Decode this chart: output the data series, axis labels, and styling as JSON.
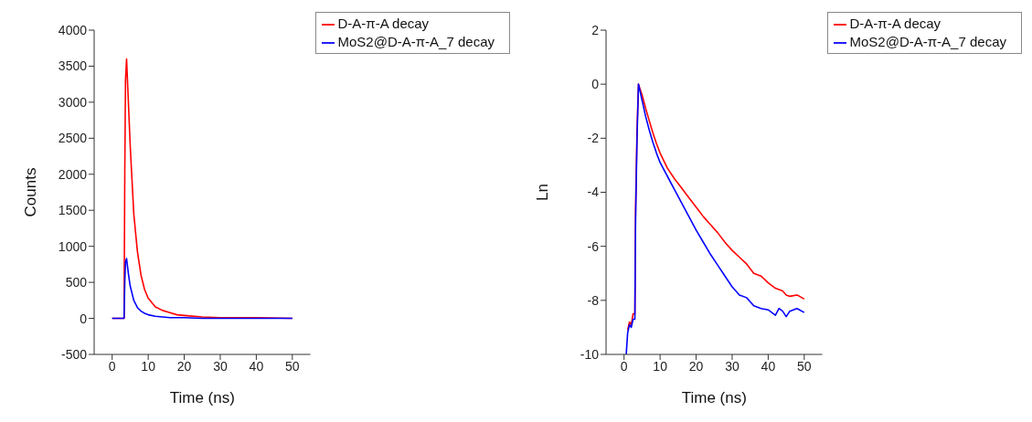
{
  "chart_data": [
    {
      "type": "line",
      "xlabel": "Time (ns)",
      "ylabel": "Counts",
      "xlim": [
        -5,
        55
      ],
      "xticks": [
        0,
        10,
        20,
        30,
        40,
        50
      ],
      "ylim": [
        -500,
        4000
      ],
      "yticks": [
        -500,
        0,
        500,
        1000,
        1500,
        2000,
        2500,
        3000,
        3500,
        4000
      ],
      "grid": false,
      "legend": "top right",
      "marker": "none",
      "line_style": "solid",
      "x": [
        0,
        3.3,
        3.5,
        3.7,
        4,
        4.5,
        5,
        6,
        7,
        8,
        9,
        10,
        12,
        14,
        16,
        18,
        20,
        25,
        30,
        40,
        50
      ],
      "series": [
        {
          "name": "D-A-π-A decay",
          "color": "#ff0000",
          "values": [
            0,
            0,
            2000,
            3300,
            3600,
            3000,
            2400,
            1450,
            930,
            600,
            400,
            280,
            160,
            110,
            80,
            50,
            40,
            20,
            10,
            10,
            0
          ]
        },
        {
          "name": "MoS2@D-A-π-A_7 decay",
          "color": "#0000ff",
          "values": [
            0,
            0,
            500,
            780,
            830,
            620,
            450,
            250,
            150,
            100,
            70,
            50,
            30,
            20,
            10,
            10,
            10,
            0,
            0,
            0,
            0
          ]
        }
      ]
    },
    {
      "type": "line",
      "xlabel": "Time (ns)",
      "ylabel": "Ln",
      "xlim": [
        -5,
        55
      ],
      "xticks": [
        0,
        10,
        20,
        30,
        40,
        50
      ],
      "ylim": [
        -10,
        2
      ],
      "yticks": [
        -10,
        -8,
        -6,
        -4,
        -2,
        0,
        2
      ],
      "grid": false,
      "legend": "top right",
      "marker": "none",
      "line_style": "solid",
      "x": [
        0.6,
        1,
        1.5,
        2,
        2.5,
        3,
        3.2,
        3.6,
        4,
        5,
        6,
        7,
        8,
        9,
        10,
        12,
        14,
        16,
        18,
        20,
        22,
        24,
        26,
        28,
        30,
        32,
        34,
        36,
        38,
        40,
        42,
        43,
        44,
        45,
        46,
        48,
        50
      ],
      "series": [
        {
          "name": "D-A-π-A decay",
          "color": "#ff0000",
          "values": [
            null,
            -9.1,
            -8.8,
            -8.9,
            -8.5,
            -8.5,
            -4.6,
            -1.7,
            0,
            -0.4,
            -0.9,
            -1.35,
            -1.8,
            -2.2,
            -2.55,
            -3.1,
            -3.5,
            -3.85,
            -4.2,
            -4.55,
            -4.9,
            -5.2,
            -5.5,
            -5.85,
            -6.15,
            -6.4,
            -6.65,
            -7.0,
            -7.1,
            -7.35,
            -7.55,
            -7.6,
            -7.65,
            -7.8,
            -7.85,
            -7.8,
            -7.95
          ]
        },
        {
          "name": "MoS2@D-A-π-A_7 decay",
          "color": "#0000ff",
          "values": [
            -10,
            -9.2,
            -8.9,
            -9.0,
            -8.7,
            -8.7,
            -5,
            -2,
            0,
            -0.6,
            -1.2,
            -1.7,
            -2.15,
            -2.55,
            -2.9,
            -3.4,
            -3.9,
            -4.4,
            -4.9,
            -5.4,
            -5.85,
            -6.3,
            -6.7,
            -7.1,
            -7.5,
            -7.8,
            -7.9,
            -8.2,
            -8.3,
            -8.35,
            -8.55,
            -8.3,
            -8.4,
            -8.6,
            -8.4,
            -8.3,
            -8.45
          ]
        }
      ]
    }
  ]
}
